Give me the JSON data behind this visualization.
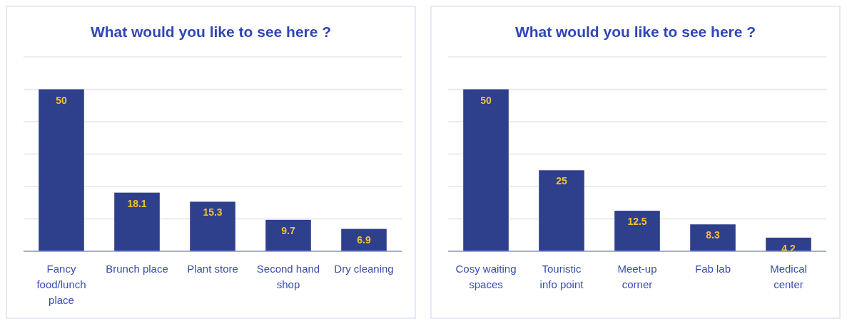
{
  "chart_data": [
    {
      "type": "bar",
      "title": "What would you like to see here ?",
      "categories": [
        "Fancy food/lunch place",
        "Brunch place",
        "Plant store",
        "Second hand shop",
        "Dry cleaning"
      ],
      "values": [
        50,
        18.1,
        15.3,
        9.7,
        6.9
      ],
      "color": "#2e3f8c",
      "data_labels": true,
      "ylim": [
        0,
        60
      ],
      "yticks": [
        {
          "value": 0,
          "label": null
        },
        {
          "value": 10,
          "label": null
        },
        {
          "value": 20,
          "label": null
        },
        {
          "value": 30,
          "label": null
        },
        {
          "value": 40,
          "label": null
        },
        {
          "value": 50,
          "label": null
        },
        {
          "value": 60,
          "label": null
        }
      ],
      "grid": "y",
      "tick_labels": "x"
    },
    {
      "type": "bar",
      "title": "What would you like to see here ?",
      "categories": [
        "Cosy waiting spaces",
        "Touristic info point",
        "Meet-up corner",
        "Fab lab",
        "Medical center"
      ],
      "values": [
        50,
        25,
        12.5,
        8.3,
        4.2
      ],
      "color": "#2e3f8c",
      "data_labels": true,
      "ylim": [
        0,
        60
      ],
      "yticks": [
        {
          "value": 0,
          "label": null
        },
        {
          "value": 10,
          "label": null
        },
        {
          "value": 20,
          "label": null
        },
        {
          "value": 30,
          "label": null
        },
        {
          "value": 40,
          "label": null
        },
        {
          "value": 50,
          "label": null
        },
        {
          "value": 60,
          "label": null
        }
      ],
      "grid": "y",
      "tick_labels": "x"
    }
  ]
}
